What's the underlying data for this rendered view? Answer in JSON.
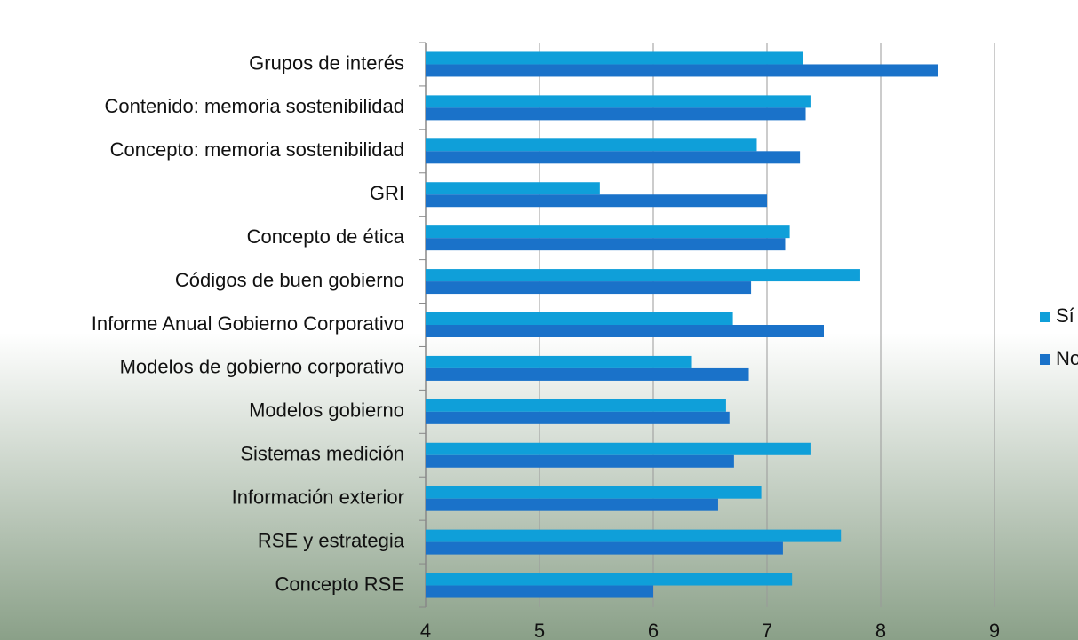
{
  "chart_data": {
    "type": "bar",
    "orientation": "horizontal",
    "categories": [
      "Grupos de interés",
      "Contenido: memoria sostenibilidad",
      "Concepto: memoria sostenibilidad",
      "GRI",
      "Concepto de ética",
      "Códigos de buen gobierno",
      "Informe Anual Gobierno Corporativo",
      "Modelos de gobierno corporativo",
      "Modelos gobierno",
      "Sistemas medición",
      "Información exterior",
      "RSE y estrategia",
      "Concepto RSE"
    ],
    "series": [
      {
        "name": "Sí",
        "color": "#0f9fd9",
        "values": [
          7.32,
          7.39,
          6.91,
          5.53,
          7.2,
          7.82,
          6.7,
          6.34,
          6.64,
          7.39,
          6.95,
          7.65,
          7.22
        ]
      },
      {
        "name": "No",
        "color": "#1a72c9",
        "values": [
          8.5,
          7.34,
          7.29,
          7.0,
          7.16,
          6.86,
          7.5,
          6.84,
          6.67,
          6.71,
          6.57,
          7.14,
          6.0
        ]
      }
    ],
    "xlim": [
      4,
      9
    ],
    "xticks": [
      4,
      5,
      6,
      7,
      8,
      9
    ],
    "grid": true,
    "legend": "right"
  }
}
